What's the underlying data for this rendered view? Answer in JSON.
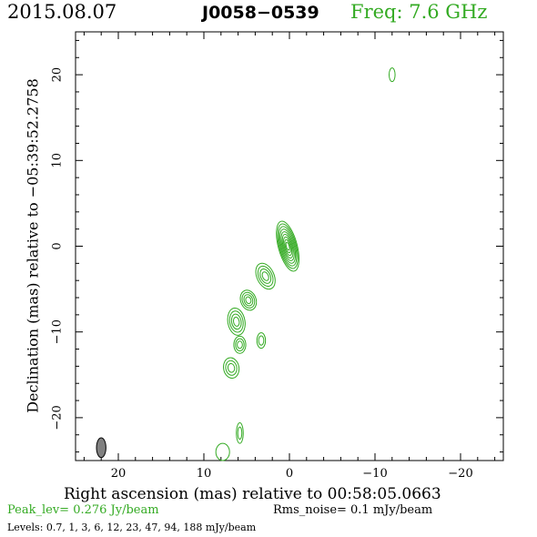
{
  "header": {
    "date": "2015.08.07",
    "source": "J0058−0539",
    "freq": "Freq: 7.6 GHz"
  },
  "footer": {
    "peak": "Peak_lev=  0.276 Jy/beam",
    "rms": "Rms_noise=   0.1 mJy/beam",
    "levels": "Levels: 0.7,   1,   3,   6,  12,  23,  47,  94, 188 mJy/beam"
  },
  "colors": {
    "contour": "#33aa22",
    "beam": "#808080",
    "axis": "#000000"
  },
  "chart_data": {
    "type": "contour",
    "xlabel": "Right ascension (mas) relative to 00:58:05.0663",
    "ylabel": "Declination (mas) relative to −05:39:52.2758",
    "xlim": [
      25,
      -25
    ],
    "ylim": [
      -25,
      25
    ],
    "x_ticks": [
      "20",
      "10",
      "0",
      "−10",
      "−20"
    ],
    "y_ticks": [
      "20",
      "10",
      "0",
      "−10",
      "−20"
    ],
    "x_tick_values": [
      20,
      10,
      0,
      -10,
      -20
    ],
    "y_tick_values": [
      20,
      10,
      0,
      -10,
      -20
    ],
    "levels_mjy_per_beam": [
      0.7,
      1,
      3,
      6,
      12,
      23,
      47,
      94,
      188
    ],
    "core": {
      "x": 0.2,
      "y": 0.0,
      "rx": 1.1,
      "ry": 3.0,
      "pa": -15,
      "n_levels": 9
    },
    "jet_components": [
      {
        "x": 2.8,
        "y": -3.5,
        "rx": 1.0,
        "ry": 1.6,
        "pa": -25,
        "n_levels": 4
      },
      {
        "x": 4.8,
        "y": -6.3,
        "rx": 0.9,
        "ry": 1.2,
        "pa": -20,
        "n_levels": 4
      },
      {
        "x": 6.2,
        "y": -8.8,
        "rx": 1.0,
        "ry": 1.6,
        "pa": -10,
        "n_levels": 4
      },
      {
        "x": 5.8,
        "y": -11.5,
        "rx": 0.7,
        "ry": 1.0,
        "pa": 0,
        "n_levels": 3
      },
      {
        "x": 3.3,
        "y": -11.0,
        "rx": 0.5,
        "ry": 0.9,
        "pa": 0,
        "n_levels": 2
      },
      {
        "x": 6.8,
        "y": -14.2,
        "rx": 0.9,
        "ry": 1.2,
        "pa": -10,
        "n_levels": 3
      },
      {
        "x": 5.8,
        "y": -21.8,
        "rx": 0.4,
        "ry": 1.2,
        "pa": 0,
        "n_levels": 2
      },
      {
        "x": 7.8,
        "y": -24.0,
        "rx": 0.8,
        "ry": 1.0,
        "pa": 0,
        "n_levels": 1
      },
      {
        "x": -12.0,
        "y": 20.0,
        "rx": 0.35,
        "ry": 0.8,
        "pa": 0,
        "n_levels": 1
      }
    ],
    "beam": {
      "x": 22.0,
      "y": -23.5,
      "major": 2.3,
      "minor": 1.1,
      "pa": 0
    }
  }
}
